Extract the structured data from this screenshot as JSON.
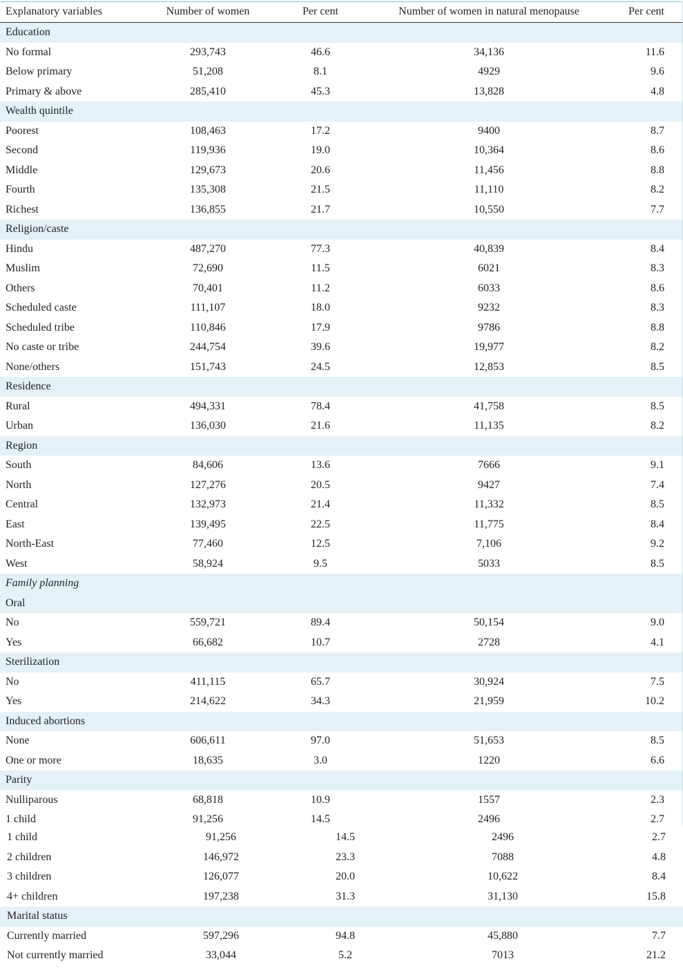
{
  "header": [
    "Explanatory variables",
    "Number of women",
    "Per cent",
    "Number of women in natural menopause",
    "Per cent"
  ],
  "rows": [
    {
      "s": "Education"
    },
    {
      "c": [
        "No formal",
        "293,743",
        "46.6",
        "34,136",
        "11.6"
      ]
    },
    {
      "c": [
        "Below primary",
        "51,208",
        "8.1",
        "4929",
        "9.6"
      ]
    },
    {
      "c": [
        "Primary & above",
        "285,410",
        "45.3",
        "13,828",
        "4.8"
      ]
    },
    {
      "s": "Wealth quintile"
    },
    {
      "c": [
        "Poorest",
        "108,463",
        "17.2",
        "9400",
        "8.7"
      ]
    },
    {
      "c": [
        "Second",
        "119,936",
        "19.0",
        "10,364",
        "8.6"
      ]
    },
    {
      "c": [
        "Middle",
        "129,673",
        "20.6",
        "11,456",
        "8.8"
      ]
    },
    {
      "c": [
        "Fourth",
        "135,308",
        "21.5",
        "11,110",
        "8.2"
      ]
    },
    {
      "c": [
        "Richest",
        "136,855",
        "21.7",
        "10,550",
        "7.7"
      ]
    },
    {
      "s": "Religion/caste"
    },
    {
      "c": [
        "Hindu",
        "487,270",
        "77.3",
        "40,839",
        "8.4"
      ]
    },
    {
      "c": [
        "Muslim",
        "72,690",
        "11.5",
        "6021",
        "8.3"
      ]
    },
    {
      "c": [
        "Others",
        "70,401",
        "11.2",
        "6033",
        "8.6"
      ]
    },
    {
      "c": [
        "Scheduled caste",
        "111,107",
        "18.0",
        "9232",
        "8.3"
      ]
    },
    {
      "c": [
        "Scheduled tribe",
        "110,846",
        "17.9",
        "9786",
        "8.8"
      ]
    },
    {
      "c": [
        "No caste or tribe",
        "244,754",
        "39.6",
        "19,977",
        "8.2"
      ]
    },
    {
      "c": [
        "None/others",
        "151,743",
        "24.5",
        "12,853",
        "8.5"
      ]
    },
    {
      "s": "Residence"
    },
    {
      "c": [
        "Rural",
        "494,331",
        "78.4",
        "41,758",
        "8.5"
      ]
    },
    {
      "c": [
        "Urban",
        "136,030",
        "21.6",
        "11,135",
        "8.2"
      ]
    },
    {
      "s": "Region"
    },
    {
      "c": [
        "South",
        "84,606",
        "13.6",
        "7666",
        "9.1"
      ]
    },
    {
      "c": [
        "North",
        "127,276",
        "20.5",
        "9427",
        "7.4"
      ]
    },
    {
      "c": [
        "Central",
        "132,973",
        "21.4",
        "11,332",
        "8.5"
      ]
    },
    {
      "c": [
        "East",
        "139,495",
        "22.5",
        "11,775",
        "8.4"
      ]
    },
    {
      "c": [
        "North-East",
        "77,460",
        "12.5",
        "7,106",
        "9.2"
      ]
    },
    {
      "c": [
        "West",
        "58,924",
        "9.5",
        "5033",
        "8.5"
      ]
    },
    {
      "s": "Family planning",
      "i": true
    },
    {
      "s": "Oral"
    },
    {
      "c": [
        "No",
        "559,721",
        "89.4",
        "50,154",
        "9.0"
      ]
    },
    {
      "c": [
        "Yes",
        "66,682",
        "10.7",
        "2728",
        "4.1"
      ]
    },
    {
      "s": "Sterilization"
    },
    {
      "c": [
        "No",
        "411,115",
        "65.7",
        "30,924",
        "7.5"
      ]
    },
    {
      "c": [
        "Yes",
        "214,622",
        "34.3",
        "21,959",
        "10.2"
      ]
    },
    {
      "s": "Induced abortions"
    },
    {
      "c": [
        "None",
        "606,611",
        "97.0",
        "51,653",
        "8.5"
      ]
    },
    {
      "c": [
        "One or more",
        "18,635",
        "3.0",
        "1220",
        "6.6"
      ]
    },
    {
      "s": "Parity"
    },
    {
      "c": [
        "Nulliparous",
        "68,818",
        "10.9",
        "1557",
        "2.3"
      ]
    },
    {
      "c": [
        "1 child",
        "91,256",
        "14.5",
        "2496",
        "2.7"
      ]
    }
  ],
  "rows2": [
    {
      "c": [
        "1 child",
        "91,256",
        "14.5",
        "2496",
        "2.7"
      ]
    },
    {
      "c": [
        "2 children",
        "146,972",
        "23.3",
        "7088",
        "4.8"
      ]
    },
    {
      "c": [
        "3 children",
        "126,077",
        "20.0",
        "10,622",
        "8.4"
      ]
    },
    {
      "c": [
        "4+ children",
        "197,238",
        "31.3",
        "31,130",
        "15.8"
      ]
    },
    {
      "s": "Marital status"
    },
    {
      "c": [
        "Currently married",
        "597,296",
        "94.8",
        "45,880",
        "7.7"
      ]
    },
    {
      "c": [
        "Not currently married",
        "33,044",
        "5.2",
        "7013",
        "21.2"
      ]
    }
  ]
}
